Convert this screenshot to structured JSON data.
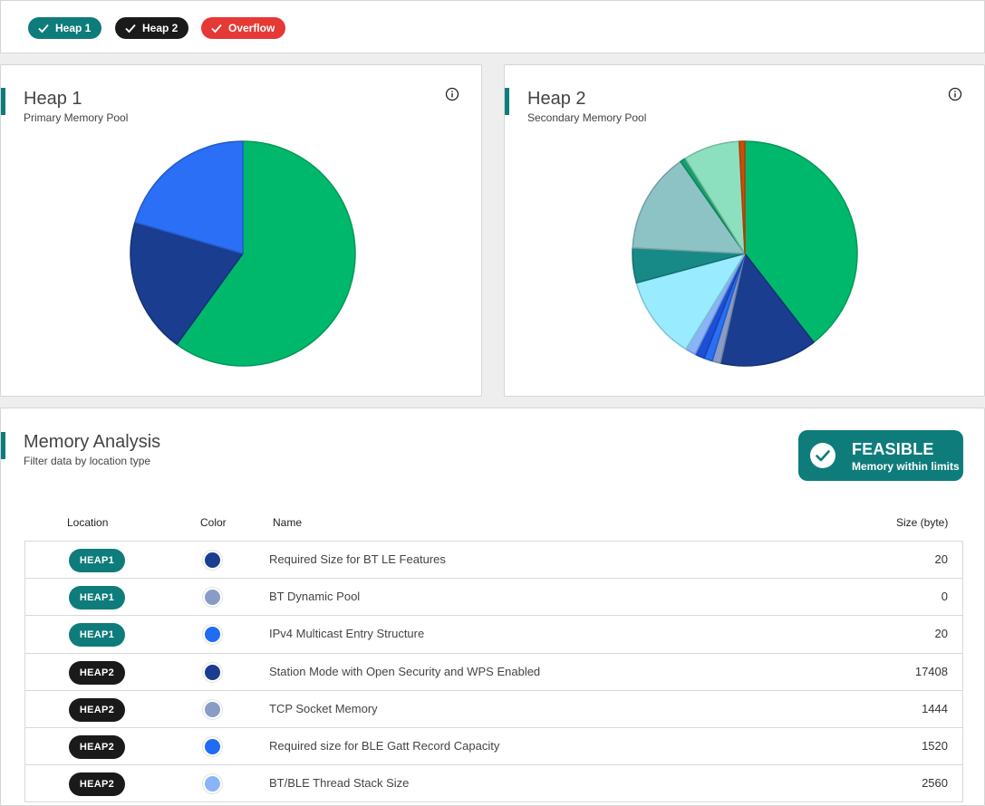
{
  "filters": [
    {
      "label": "Heap 1",
      "color": "#0e7c7b"
    },
    {
      "label": "Heap 2",
      "color": "#1a1a1a"
    },
    {
      "label": "Overflow",
      "color": "#e53935"
    }
  ],
  "heap1": {
    "title": "Heap 1",
    "subtitle": "Primary Memory Pool",
    "chart_data": {
      "type": "pie",
      "values": [
        60,
        19.5,
        20.5
      ],
      "colors": [
        "#00b86b",
        "#1a3d8f",
        "#2a6ff5"
      ]
    }
  },
  "heap2": {
    "title": "Heap 2",
    "subtitle": "Secondary Memory Pool",
    "chart_data": {
      "type": "pie",
      "values": [
        39.5,
        14,
        1.2,
        1.2,
        1.4,
        1.5,
        12,
        5,
        14.5,
        0.8,
        8.1,
        0.8
      ],
      "colors": [
        "#00b86b",
        "#1a3d8f",
        "#8a9cc4",
        "#2a6ff5",
        "#1d4fd6",
        "#8ab4f8",
        "#99ebff",
        "#178a88",
        "#8ec3c6",
        "#14a06c",
        "#8de0bf",
        "#c8500a"
      ]
    }
  },
  "analysis": {
    "title": "Memory Analysis",
    "subtitle": "Filter data by location type",
    "status_title": "FEASIBLE",
    "status_sub": "Memory within limits",
    "headers": {
      "location": "Location",
      "color": "Color",
      "name": "Name",
      "size": "Size (byte)"
    },
    "rows": [
      {
        "location": "HEAP1",
        "color": "#1a3d8f",
        "name": "Required Size for BT LE Features",
        "size": "20"
      },
      {
        "location": "HEAP1",
        "color": "#8a9cc4",
        "name": "BT Dynamic Pool",
        "size": "0"
      },
      {
        "location": "HEAP1",
        "color": "#1f6df5",
        "name": "IPv4 Multicast Entry Structure",
        "size": "20"
      },
      {
        "location": "HEAP2",
        "color": "#1a3d8f",
        "name": "Station Mode with Open Security and WPS Enabled",
        "size": "17408"
      },
      {
        "location": "HEAP2",
        "color": "#8a9cc4",
        "name": "TCP Socket Memory",
        "size": "1444"
      },
      {
        "location": "HEAP2",
        "color": "#1f6df5",
        "name": "Required size for BLE Gatt Record Capacity",
        "size": "1520"
      },
      {
        "location": "HEAP2",
        "color": "#8ab4f8",
        "name": "BT/BLE Thread Stack Size",
        "size": "2560"
      }
    ]
  }
}
